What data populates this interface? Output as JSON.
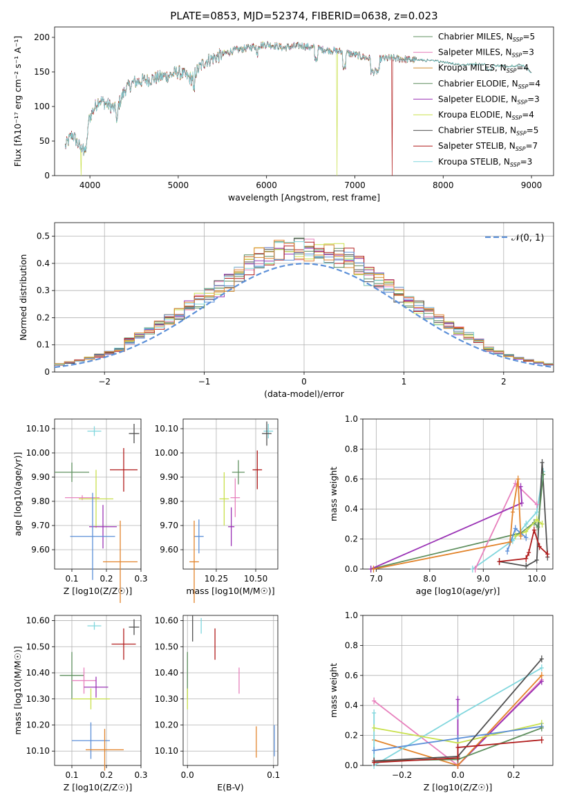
{
  "figure": {
    "title": "PLATE=0853, MJD=52374, FIBERID=0638, z=0.023"
  },
  "chart_data": [
    {
      "id": "spectrum",
      "type": "line",
      "xlabel": "wavelength [Angstrom, rest frame]",
      "ylabel": "Flux [fλ10⁻¹⁷ erg cm⁻² s⁻¹ A⁻¹]",
      "xlim": [
        3600,
        9250
      ],
      "ylim": [
        0,
        215
      ],
      "xticks": [
        4000,
        5000,
        6000,
        7000,
        8000,
        9000
      ],
      "yticks": [
        0,
        50,
        100,
        150,
        200
      ],
      "continuum_anchors": [
        [
          3720,
          42
        ],
        [
          3800,
          60
        ],
        [
          3900,
          38
        ],
        [
          3950,
          60
        ],
        [
          4000,
          85
        ],
        [
          4100,
          110
        ],
        [
          4200,
          103
        ],
        [
          4300,
          95
        ],
        [
          4400,
          125
        ],
        [
          4500,
          135
        ],
        [
          4700,
          140
        ],
        [
          4900,
          145
        ],
        [
          5000,
          150
        ],
        [
          5150,
          140
        ],
        [
          5200,
          150
        ],
        [
          5300,
          165
        ],
        [
          5400,
          170
        ],
        [
          5600,
          180
        ],
        [
          5800,
          185
        ],
        [
          5900,
          188
        ],
        [
          6000,
          190
        ],
        [
          6200,
          185
        ],
        [
          6400,
          188
        ],
        [
          6600,
          183
        ],
        [
          6800,
          180
        ],
        [
          7000,
          175
        ],
        [
          7200,
          168
        ],
        [
          7400,
          170
        ],
        [
          7600,
          168
        ],
        [
          8000,
          165
        ],
        [
          8200,
          160
        ],
        [
          8400,
          162
        ],
        [
          8700,
          158
        ],
        [
          8900,
          160
        ],
        [
          9000,
          150
        ]
      ],
      "series": [
        {
          "name": "Chabrier MILES, N_SSP=5",
          "color": "#5e8f5e"
        },
        {
          "name": "Salpeter MILES, N_SSP=3",
          "color": "#e77fbc"
        },
        {
          "name": "Kroupa MILES, N_SSP=4",
          "color": "#d08a2b"
        },
        {
          "name": "Chabrier ELODIE, N_SSP=4",
          "color": "#5a8a5a"
        },
        {
          "name": "Salpeter ELODIE, N_SSP=3",
          "color": "#9a32b5"
        },
        {
          "name": "Kroupa ELODIE, N_SSP=4",
          "color": "#c8e04a"
        },
        {
          "name": "Chabrier STELIB, N_SSP=5",
          "color": "#4f4f4f"
        },
        {
          "name": "Salpeter STELIB, N_SSP=7",
          "color": "#b01a1a"
        },
        {
          "name": "Kroupa STELIB, N_SSP=3",
          "color": "#7fd6dd"
        }
      ],
      "legend": {
        "position": "top-right",
        "labels": [
          {
            "base": "Chabrier MILES, N",
            "sub": "SSP",
            "tail": "=5"
          },
          {
            "base": "Salpeter MILES, N",
            "sub": "SSP",
            "tail": "=3"
          },
          {
            "base": "Kroupa MILES, N",
            "sub": "SSP",
            "tail": "=4"
          },
          {
            "base": "Chabrier ELODIE, N",
            "sub": "SSP",
            "tail": "=4"
          },
          {
            "base": "Salpeter ELODIE, N",
            "sub": "SSP",
            "tail": "=3"
          },
          {
            "base": "Kroupa ELODIE, N",
            "sub": "SSP",
            "tail": "=4"
          },
          {
            "base": "Chabrier STELIB, N",
            "sub": "SSP",
            "tail": "=5"
          },
          {
            "base": "Salpeter STELIB, N",
            "sub": "SSP",
            "tail": "=7"
          },
          {
            "base": "Kroupa STELIB, N",
            "sub": "SSP",
            "tail": "=3"
          }
        ]
      },
      "dropouts": [
        {
          "series": "Kroupa ELODIE, N_SSP=4",
          "x": 3900
        },
        {
          "series": "Kroupa ELODIE, N_SSP=4",
          "x": 6800
        },
        {
          "series": "Salpeter STELIB, N_SSP=7",
          "x": 7420
        }
      ]
    },
    {
      "id": "residuals",
      "type": "bar",
      "xlabel": "(data-model)/error",
      "ylabel": "Normed distribution",
      "xlim": [
        -2.5,
        2.5
      ],
      "ylim": [
        0,
        0.55
      ],
      "xticks": [
        -2,
        -1,
        0,
        1,
        2
      ],
      "yticks": [
        0.0,
        0.1,
        0.2,
        0.3,
        0.4,
        0.5
      ],
      "reference": {
        "name": "𝒩(0, 1)",
        "mu": 0,
        "sigma": 1,
        "color": "#5b8fd8"
      },
      "bin_width": 0.1
    },
    {
      "id": "age_vs_z",
      "type": "scatter",
      "xlabel": "Z [log10(Z/Z☉)]",
      "ylabel": "age  [log10(age/yr)]",
      "xlim": [
        0.05,
        0.3
      ],
      "ylim": [
        9.52,
        10.14
      ],
      "xticks": [
        0.1,
        0.2,
        0.3
      ],
      "yticks": [
        9.6,
        9.7,
        9.8,
        9.9,
        10.0,
        10.1
      ],
      "points": [
        {
          "x": 0.165,
          "xerr": 0.02,
          "y": 10.09,
          "yerr": 0.02,
          "color": "#7fd6dd"
        },
        {
          "x": 0.28,
          "xerr": 0.015,
          "y": 10.08,
          "yerr": 0.04,
          "color": "#4f4f4f"
        },
        {
          "x": 0.1,
          "xerr": 0.05,
          "y": 9.92,
          "yerr": 0.04,
          "color": "#5e8f5e"
        },
        {
          "x": 0.25,
          "xerr": 0.04,
          "y": 9.93,
          "yerr": 0.09,
          "color": "#b01a1a"
        },
        {
          "x": 0.13,
          "xerr": 0.05,
          "y": 9.815,
          "yerr": 0.01,
          "color": "#e77fbc"
        },
        {
          "x": 0.17,
          "xerr": 0.05,
          "y": 9.81,
          "yerr": 0.12,
          "color": "#c8e04a"
        },
        {
          "x": 0.19,
          "xerr": 0.04,
          "y": 9.695,
          "yerr": 0.09,
          "color": "#9a32b5"
        },
        {
          "x": 0.16,
          "xerr": 0.065,
          "y": 9.655,
          "yerr": 0.18,
          "color": "#5b8fd8"
        },
        {
          "x": 0.24,
          "xerr": 0.05,
          "y": 9.55,
          "yerr": 0.17,
          "color": "#e2832a"
        }
      ]
    },
    {
      "id": "age_vs_mass",
      "type": "scatter",
      "xlabel": "mass [log10(M/M☉)]",
      "ylabel": "",
      "xlim": [
        10.04,
        10.64
      ],
      "ylim": [
        9.52,
        10.14
      ],
      "xticks": [
        10.25,
        10.5
      ],
      "yticks": [
        9.6,
        9.7,
        9.8,
        9.9,
        10.0,
        10.1
      ],
      "points": [
        {
          "x": 10.58,
          "xerr": 0.03,
          "y": 10.09,
          "yerr": 0.03,
          "color": "#7fd6dd"
        },
        {
          "x": 10.57,
          "xerr": 0.03,
          "y": 10.08,
          "yerr": 0.05,
          "color": "#4f4f4f"
        },
        {
          "x": 10.39,
          "xerr": 0.04,
          "y": 9.92,
          "yerr": 0.05,
          "color": "#5e8f5e"
        },
        {
          "x": 10.51,
          "xerr": 0.03,
          "y": 9.93,
          "yerr": 0.08,
          "color": "#b01a1a"
        },
        {
          "x": 10.37,
          "xerr": 0.03,
          "y": 9.815,
          "yerr": 0.08,
          "color": "#e77fbc"
        },
        {
          "x": 10.3,
          "xerr": 0.03,
          "y": 9.81,
          "yerr": 0.11,
          "color": "#c8e04a"
        },
        {
          "x": 10.345,
          "xerr": 0.02,
          "y": 9.695,
          "yerr": 0.08,
          "color": "#9a32b5"
        },
        {
          "x": 10.14,
          "xerr": 0.03,
          "y": 9.655,
          "yerr": 0.07,
          "color": "#5b8fd8"
        },
        {
          "x": 10.11,
          "xerr": 0.03,
          "y": 9.55,
          "yerr": 0.17,
          "color": "#e2832a"
        }
      ]
    },
    {
      "id": "weights_vs_age",
      "type": "line",
      "xlabel": "age  [log10(age/yr)]",
      "ylabel": "mass weight",
      "xlim": [
        6.75,
        10.3
      ],
      "ylim": [
        0,
        1.0
      ],
      "xticks": [
        7,
        8,
        9,
        10
      ],
      "yticks": [
        0.0,
        0.2,
        0.4,
        0.6,
        0.8,
        1.0
      ],
      "series": [
        {
          "color": "#7fd6dd",
          "x": [
            8.8,
            9.55,
            9.8,
            10.0,
            10.12
          ],
          "y": [
            0.0,
            0.19,
            0.3,
            0.38,
            0.65
          ]
        },
        {
          "color": "#4f4f4f",
          "x": [
            9.3,
            9.8,
            10.0,
            10.1,
            10.2
          ],
          "y": [
            0.05,
            0.02,
            0.06,
            0.71,
            0.08
          ]
        },
        {
          "color": "#5e8f5e",
          "x": [
            6.9,
            9.7,
            9.95,
            10.02,
            10.12
          ],
          "y": [
            0.0,
            0.24,
            0.31,
            0.28,
            0.63
          ]
        },
        {
          "color": "#b01a1a",
          "x": [
            9.3,
            9.8,
            9.85,
            9.95,
            10.05,
            10.2
          ],
          "y": [
            0.05,
            0.07,
            0.11,
            0.26,
            0.15,
            0.1
          ]
        },
        {
          "color": "#e77fbc",
          "x": [
            8.85,
            9.6,
            10.0
          ],
          "y": [
            0.0,
            0.57,
            0.43
          ]
        },
        {
          "color": "#c8e04a",
          "x": [
            9.6,
            9.8,
            10.0,
            10.1
          ],
          "y": [
            0.22,
            0.25,
            0.33,
            0.3
          ]
        },
        {
          "color": "#9a32b5",
          "x": [
            6.9,
            9.72,
            9.7
          ],
          "y": [
            0.0,
            0.44,
            0.55
          ]
        },
        {
          "color": "#5b8fd8",
          "x": [
            9.45,
            9.6,
            9.8
          ],
          "y": [
            0.12,
            0.27,
            0.21
          ]
        },
        {
          "color": "#e2832a",
          "x": [
            6.95,
            9.5,
            9.55,
            9.65,
            9.7
          ],
          "y": [
            0.0,
            0.18,
            0.38,
            0.6,
            0.22
          ]
        }
      ]
    },
    {
      "id": "mass_vs_z",
      "type": "scatter",
      "xlabel": "Z [log10(Z/Z☉)]",
      "ylabel": "mass [log10(M/M☉)]",
      "xlim": [
        0.05,
        0.3
      ],
      "ylim": [
        10.045,
        10.62
      ],
      "xticks": [
        0.1,
        0.2,
        0.3
      ],
      "yticks": [
        10.1,
        10.2,
        10.3,
        10.4,
        10.5,
        10.6
      ],
      "points": [
        {
          "x": 0.165,
          "xerr": 0.02,
          "y": 10.58,
          "yerr": 0.015,
          "color": "#7fd6dd"
        },
        {
          "x": 0.28,
          "xerr": 0.015,
          "y": 10.575,
          "yerr": 0.03,
          "color": "#4f4f4f"
        },
        {
          "x": 0.25,
          "xerr": 0.035,
          "y": 10.51,
          "yerr": 0.06,
          "color": "#b01a1a"
        },
        {
          "x": 0.1,
          "xerr": 0.035,
          "y": 10.39,
          "yerr": 0.09,
          "color": "#5e8f5e"
        },
        {
          "x": 0.135,
          "xerr": 0.035,
          "y": 10.37,
          "yerr": 0.05,
          "color": "#e77fbc"
        },
        {
          "x": 0.17,
          "xerr": 0.035,
          "y": 10.345,
          "yerr": 0.04,
          "color": "#9a32b5"
        },
        {
          "x": 0.155,
          "xerr": 0.055,
          "y": 10.3,
          "yerr": 0.04,
          "color": "#c8e04a"
        },
        {
          "x": 0.155,
          "xerr": 0.055,
          "y": 10.14,
          "yerr": 0.07,
          "color": "#5b8fd8"
        },
        {
          "x": 0.195,
          "xerr": 0.055,
          "y": 10.105,
          "yerr": 0.08,
          "color": "#e2832a"
        }
      ]
    },
    {
      "id": "mass_vs_ebv",
      "type": "scatter",
      "xlabel": "E(B-V)",
      "ylabel": "",
      "xlim": [
        -0.005,
        0.105
      ],
      "ylim": [
        10.045,
        10.62
      ],
      "xticks": [
        0.0,
        0.1
      ],
      "yticks": [
        10.1,
        10.2,
        10.3,
        10.4,
        10.5,
        10.6
      ],
      "points": [
        {
          "x": 0.016,
          "y": 10.58,
          "yerr": 0.03,
          "color": "#7fd6dd"
        },
        {
          "x": 0.006,
          "y": 10.57,
          "yerr": 0.05,
          "color": "#4f4f4f"
        },
        {
          "x": 0.032,
          "y": 10.51,
          "yerr": 0.06,
          "color": "#b01a1a"
        },
        {
          "x": 0.0,
          "y": 10.39,
          "yerr": 0.09,
          "color": "#5e8f5e"
        },
        {
          "x": 0.06,
          "y": 10.37,
          "yerr": 0.05,
          "color": "#e77fbc"
        },
        {
          "x": 0.0,
          "y": 10.3,
          "yerr": 0.04,
          "color": "#c8e04a"
        },
        {
          "x": 0.101,
          "y": 10.14,
          "yerr": 0.06,
          "color": "#5b8fd8"
        },
        {
          "x": 0.08,
          "y": 10.135,
          "yerr": 0.06,
          "color": "#e2832a"
        }
      ]
    },
    {
      "id": "weights_vs_z",
      "type": "line",
      "xlabel": "Z [log10(Z/Z☉)]",
      "ylabel": "mass weight",
      "xlim": [
        -0.34,
        0.34
      ],
      "ylim": [
        0,
        1.0
      ],
      "xticks": [
        -0.2,
        0.0,
        0.2
      ],
      "yticks": [
        0.0,
        0.2,
        0.4,
        0.6,
        0.8,
        1.0
      ],
      "series": [
        {
          "color": "#e77fbc",
          "x": [
            -0.3,
            0.0,
            0.3
          ],
          "y": [
            0.43,
            0.0,
            0.57
          ]
        },
        {
          "color": "#9a32b5",
          "x": [
            0.0,
            0.0,
            0.0,
            0.3
          ],
          "y": [
            0.44,
            0.0,
            0.0,
            0.56
          ]
        },
        {
          "color": "#e2832a",
          "x": [
            -0.3,
            0.0,
            0.3
          ],
          "y": [
            0.17,
            0.0,
            0.6
          ]
        },
        {
          "color": "#7fd6dd",
          "x": [
            -0.3,
            -0.3,
            0.0,
            0.3
          ],
          "y": [
            0.35,
            0.0,
            0.33,
            0.65
          ]
        },
        {
          "color": "#c8e04a",
          "x": [
            -0.3,
            0.0,
            0.3
          ],
          "y": [
            0.25,
            0.15,
            0.28
          ]
        },
        {
          "color": "#5b8fd8",
          "x": [
            -0.3,
            0.0,
            0.3
          ],
          "y": [
            0.1,
            0.18,
            0.26
          ]
        },
        {
          "color": "#5e8f5e",
          "x": [
            -0.3,
            0.0,
            0.3
          ],
          "y": [
            0.03,
            0.04,
            0.25
          ]
        },
        {
          "color": "#4f4f4f",
          "x": [
            -0.3,
            0.0,
            0.3
          ],
          "y": [
            0.03,
            0.06,
            0.71
          ]
        },
        {
          "color": "#b01a1a",
          "x": [
            -0.3,
            0.0,
            0.0,
            0.3
          ],
          "y": [
            0.02,
            0.05,
            0.12,
            0.17
          ]
        }
      ]
    }
  ]
}
